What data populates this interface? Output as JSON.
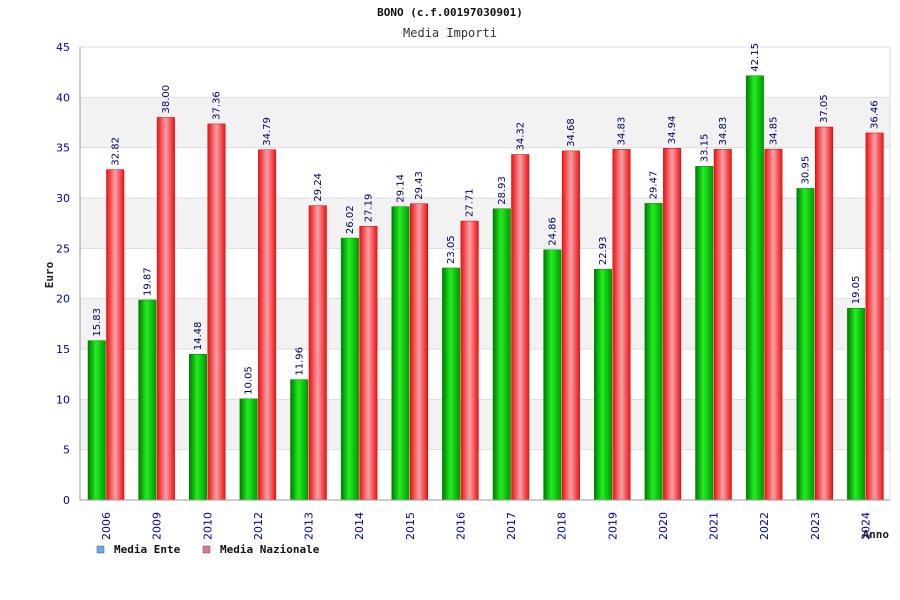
{
  "chart_data": {
    "type": "bar",
    "title": "BONO (c.f.00197030901)",
    "subtitle": "Media Importi",
    "xlabel": "Anno",
    "ylabel": "Euro",
    "ylim": [
      0,
      45
    ],
    "yticks": [
      "0",
      "5",
      "10",
      "15",
      "20",
      "25",
      "30",
      "35",
      "40",
      "45"
    ],
    "ytick_values": [
      0,
      5,
      10,
      15,
      20,
      25,
      30,
      35,
      40,
      45
    ],
    "grid": true,
    "legend_position": "bottom-left",
    "categories": [
      "2006",
      "2009",
      "2010",
      "2012",
      "2013",
      "2014",
      "2015",
      "2016",
      "2017",
      "2018",
      "2019",
      "2020",
      "2021",
      "2022",
      "2023",
      "2024"
    ],
    "series": [
      {
        "name": "Media Ente",
        "color": "#00bb00",
        "legend_color": "#66aaee",
        "values": [
          15.83,
          19.87,
          14.48,
          10.05,
          11.96,
          26.02,
          29.14,
          23.05,
          28.93,
          24.86,
          22.93,
          29.47,
          33.15,
          42.15,
          30.95,
          19.05
        ],
        "labels": [
          "15.83",
          "19.87",
          "14.48",
          "10.05",
          "11.96",
          "26.02",
          "29.14",
          "23.05",
          "28.93",
          "24.86",
          "22.93",
          "29.47",
          "33.15",
          "42.15",
          "30.95",
          "19.05"
        ]
      },
      {
        "name": "Media Nazionale",
        "color": "#ee1122",
        "legend_color": "#dd7799",
        "values": [
          32.82,
          38.0,
          37.36,
          34.79,
          29.24,
          27.19,
          29.43,
          27.71,
          34.32,
          34.68,
          34.83,
          34.94,
          34.83,
          34.85,
          37.05,
          36.46
        ],
        "labels": [
          "32.82",
          "38.00",
          "37.36",
          "34.79",
          "29.24",
          "27.19",
          "29.43",
          "27.71",
          "34.32",
          "34.68",
          "34.83",
          "34.94",
          "34.83",
          "34.85",
          "37.05",
          "36.46"
        ]
      }
    ]
  }
}
